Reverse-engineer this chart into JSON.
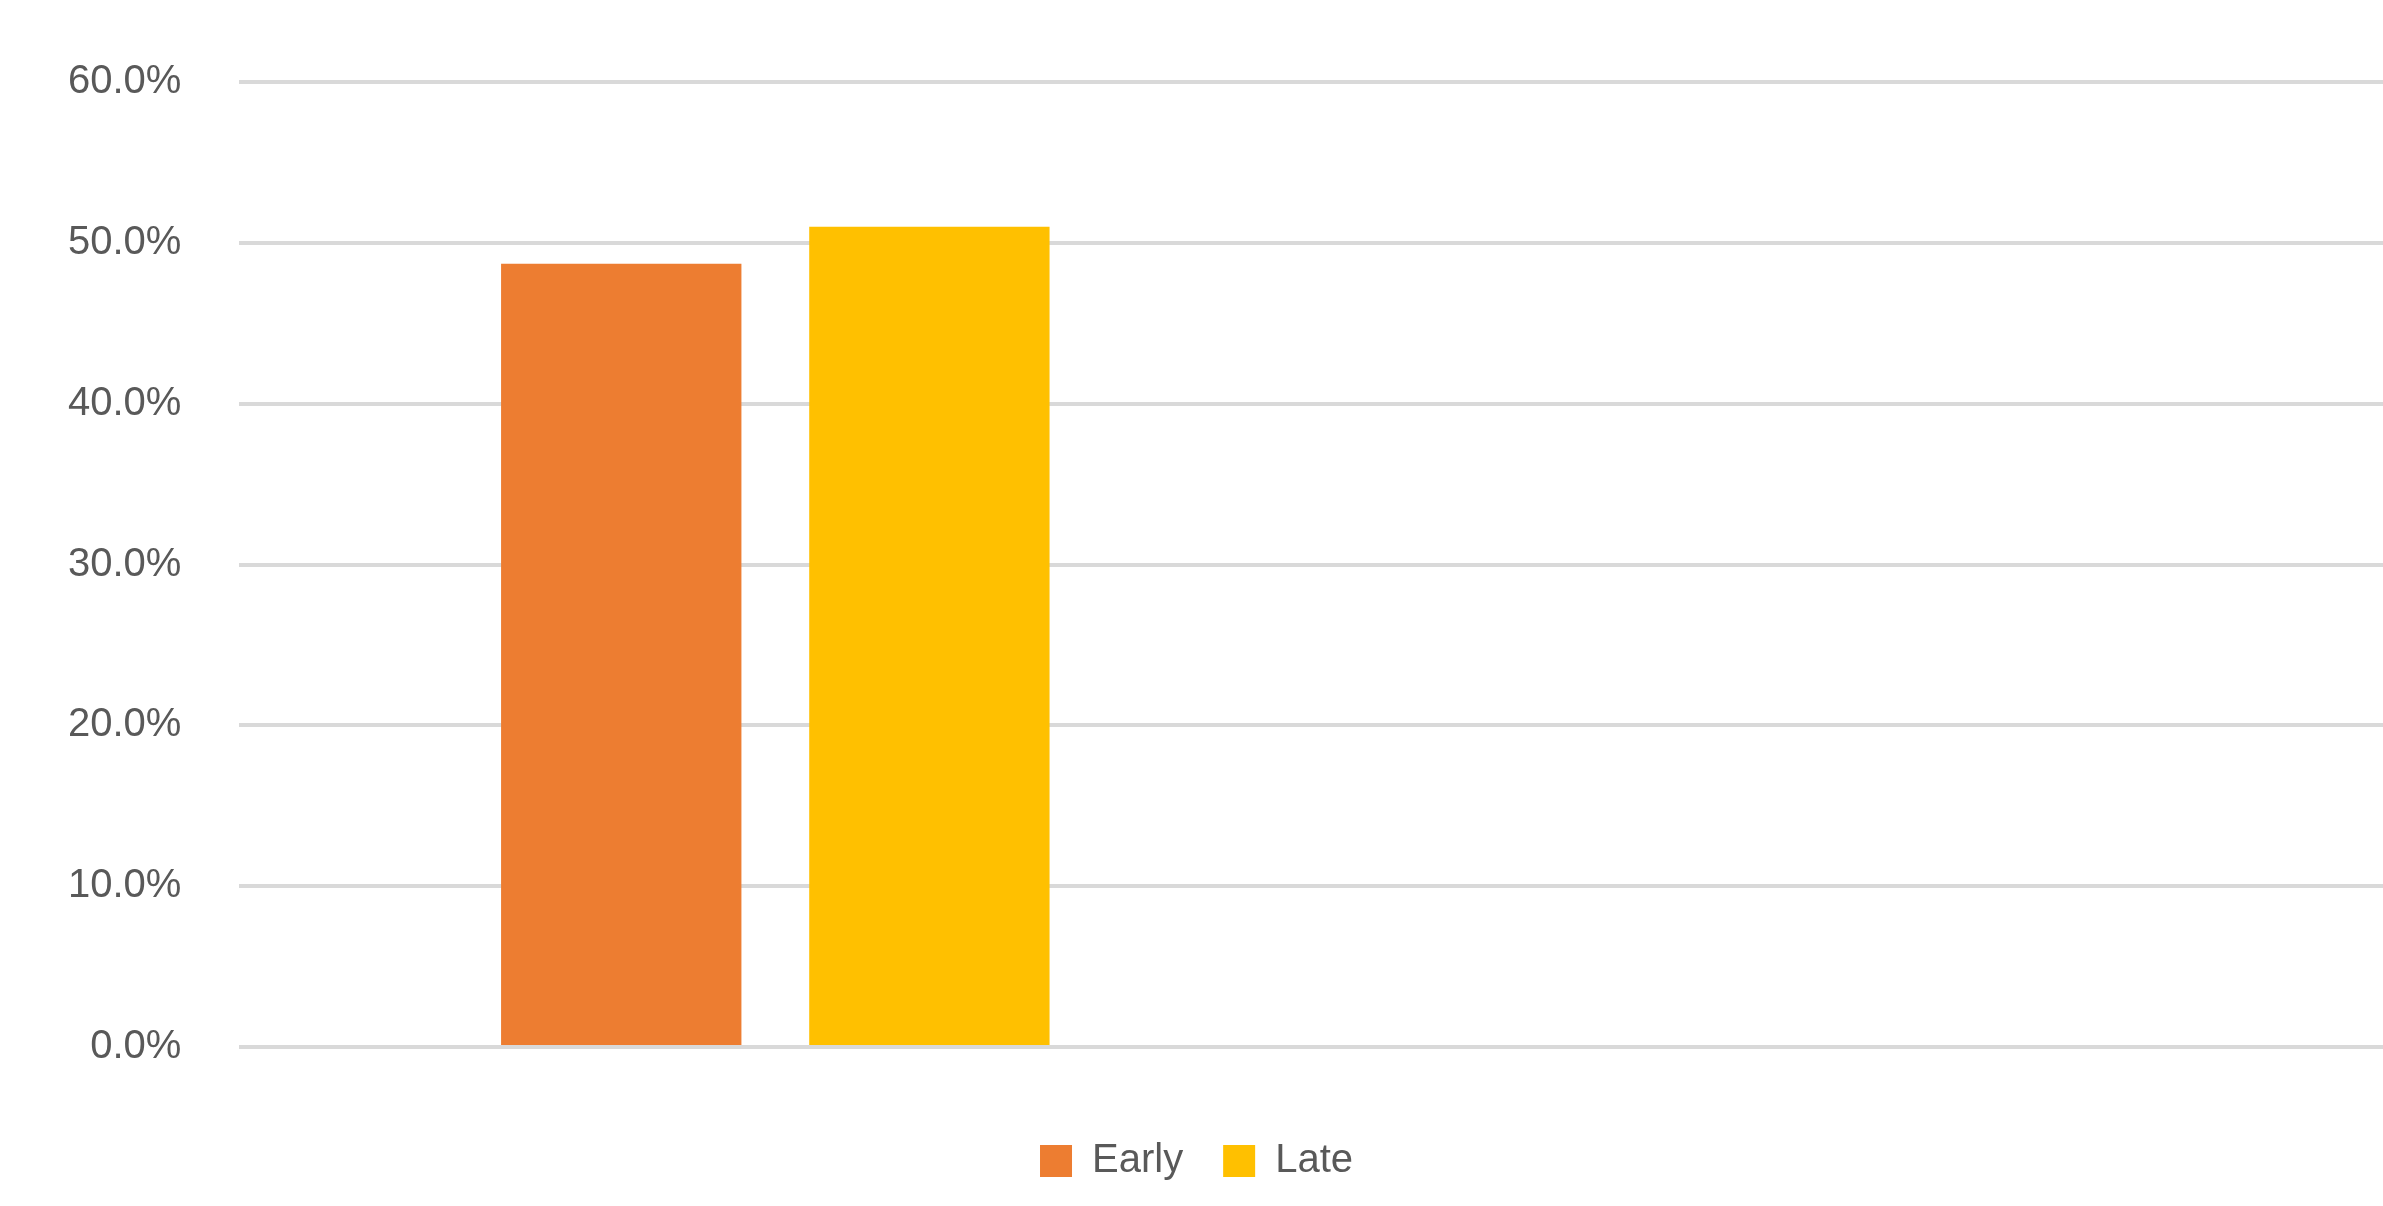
{
  "chart_data": {
    "type": "bar",
    "categories": [
      null,
      null
    ],
    "series": [
      {
        "name": "Early",
        "color": "#ed7d31",
        "values": [
          48.7,
          null
        ]
      },
      {
        "name": "Late",
        "color": "#ffc000",
        "values": [
          51.0,
          null
        ]
      }
    ],
    "ylim": [
      0,
      60
    ],
    "yticks": [
      {
        "value": 0,
        "label": "0.0%"
      },
      {
        "value": 10,
        "label": "10.0%"
      },
      {
        "value": 20,
        "label": "20.0%"
      },
      {
        "value": 30,
        "label": "30.0%"
      },
      {
        "value": 40,
        "label": "40.0%"
      },
      {
        "value": 50,
        "label": "50.0%"
      },
      {
        "value": 60,
        "label": "60.0%"
      }
    ],
    "grid": "y",
    "legend": "bottom"
  }
}
